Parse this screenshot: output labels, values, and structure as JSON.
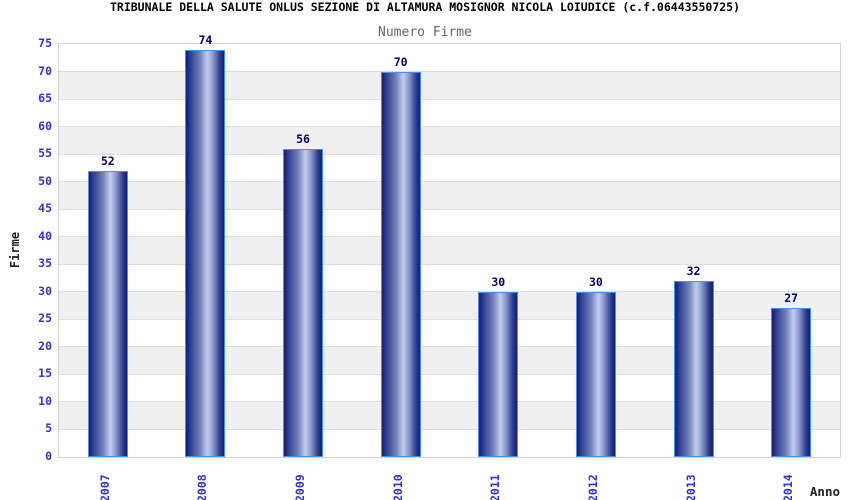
{
  "chart_data": {
    "type": "bar",
    "title": "TRIBUNALE DELLA SALUTE ONLUS SEZIONE DI ALTAMURA MOSIGNOR NICOLA LOIUDICE (c.f.06443550725)",
    "subtitle": "Numero Firme",
    "xlabel": "Anno",
    "ylabel": "Firme",
    "categories": [
      "2007",
      "2008",
      "2009",
      "2010",
      "2011",
      "2012",
      "2013",
      "2014"
    ],
    "values": [
      52,
      74,
      56,
      70,
      30,
      30,
      32,
      27
    ],
    "ylim": [
      0,
      75
    ],
    "ytick_step": 5,
    "grid": true,
    "legend_position": "none",
    "background_bands": "alternating horizontal stripes every 5 units"
  },
  "colors": {
    "title": "#000000",
    "subtitle": "#666666",
    "axis_title": "#222222",
    "tick_label": "#3333cc",
    "value_label": "#000066",
    "bar_border": "#4a90f4",
    "bar_dark": "#141e6e",
    "bar_mid": "#7684bc",
    "bar_light": "#c4cdee",
    "band_gray": "#f0f0f0",
    "gridline": "#dddddd",
    "plot_border": "#d4d4d4",
    "background": "#ffffff"
  }
}
